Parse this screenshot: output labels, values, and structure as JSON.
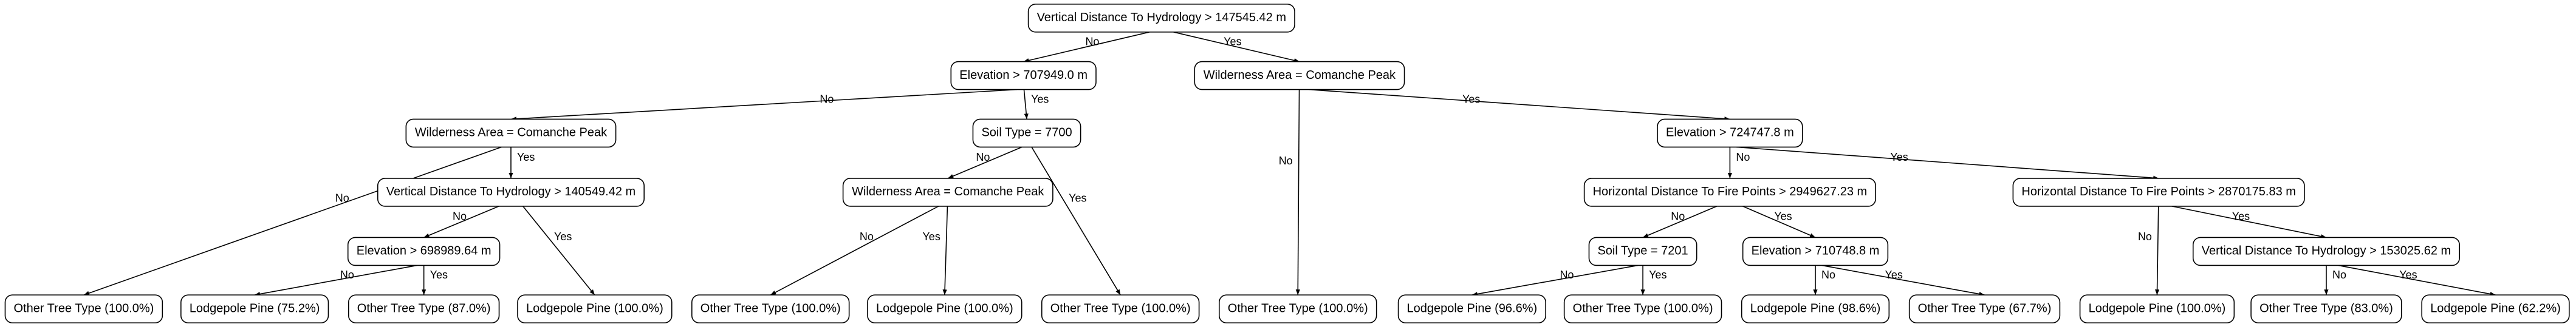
{
  "nodes": [
    {
      "label": "Vertical Distance To Hydrology > 147545.42 m"
    },
    {
      "label": "Elevation > 707949.0 m"
    },
    {
      "label": "Wilderness Area = Comanche Peak"
    },
    {
      "label": "Wilderness Area = Comanche Peak"
    },
    {
      "label": "Soil Type = 7700"
    },
    {
      "label": "Other Tree Type (100.0%)"
    },
    {
      "label": "Elevation > 724747.8 m"
    },
    {
      "label": "Vertical Distance To Hydrology > 140549.42 m"
    },
    {
      "label": "Other Tree Type (100.0%)"
    },
    {
      "label": "Wilderness Area = Comanche Peak"
    },
    {
      "label": "Other Tree Type (100.0%)"
    },
    {
      "label": "Horizontal Distance To Fire Points > 2949627.23 m"
    },
    {
      "label": "Horizontal Distance To Fire Points > 2870175.83 m"
    },
    {
      "label": "Elevation > 698989.64 m"
    },
    {
      "label": "Lodgepole Pine (100.0%)"
    },
    {
      "label": "Other Tree Type (100.0%)"
    },
    {
      "label": "Lodgepole Pine (100.0%)"
    },
    {
      "label": "Soil Type = 7201"
    },
    {
      "label": "Elevation > 710748.8 m"
    },
    {
      "label": "Lodgepole Pine (100.0%)"
    },
    {
      "label": "Vertical Distance To Hydrology > 153025.62 m"
    },
    {
      "label": "Lodgepole Pine (75.2%)"
    },
    {
      "label": "Other Tree Type (87.0%)"
    },
    {
      "label": "Lodgepole Pine (96.6%)"
    },
    {
      "label": "Other Tree Type (100.0%)"
    },
    {
      "label": "Lodgepole Pine (98.6%)"
    },
    {
      "label": "Other Tree Type (67.7%)"
    },
    {
      "label": "Other Tree Type (83.0%)"
    },
    {
      "label": "Lodgepole Pine (62.2%)"
    }
  ],
  "edges": [
    {
      "from": 0,
      "to": 1,
      "label": "No"
    },
    {
      "from": 0,
      "to": 2,
      "label": "Yes"
    },
    {
      "from": 1,
      "to": 3,
      "label": "No"
    },
    {
      "from": 1,
      "to": 4,
      "label": "Yes"
    },
    {
      "from": 2,
      "to": 5,
      "label": "No"
    },
    {
      "from": 2,
      "to": 6,
      "label": "Yes"
    },
    {
      "from": 3,
      "to": 8,
      "label": "No"
    },
    {
      "from": 3,
      "to": 7,
      "label": "Yes"
    },
    {
      "from": 4,
      "to": 9,
      "label": "No"
    },
    {
      "from": 4,
      "to": 10,
      "label": "Yes"
    },
    {
      "from": 6,
      "to": 11,
      "label": "No"
    },
    {
      "from": 6,
      "to": 12,
      "label": "Yes"
    },
    {
      "from": 7,
      "to": 13,
      "label": "No"
    },
    {
      "from": 7,
      "to": 14,
      "label": "Yes"
    },
    {
      "from": 9,
      "to": 15,
      "label": "No"
    },
    {
      "from": 9,
      "to": 16,
      "label": "Yes"
    },
    {
      "from": 11,
      "to": 17,
      "label": "No"
    },
    {
      "from": 11,
      "to": 18,
      "label": "Yes"
    },
    {
      "from": 12,
      "to": 19,
      "label": "No"
    },
    {
      "from": 12,
      "to": 20,
      "label": "Yes"
    },
    {
      "from": 13,
      "to": 21,
      "label": "No"
    },
    {
      "from": 13,
      "to": 22,
      "label": "Yes"
    },
    {
      "from": 17,
      "to": 23,
      "label": "No"
    },
    {
      "from": 17,
      "to": 24,
      "label": "Yes"
    },
    {
      "from": 18,
      "to": 25,
      "label": "No"
    },
    {
      "from": 18,
      "to": 26,
      "label": "Yes"
    },
    {
      "from": 20,
      "to": 27,
      "label": "No"
    },
    {
      "from": 20,
      "to": 28,
      "label": "Yes"
    }
  ]
}
